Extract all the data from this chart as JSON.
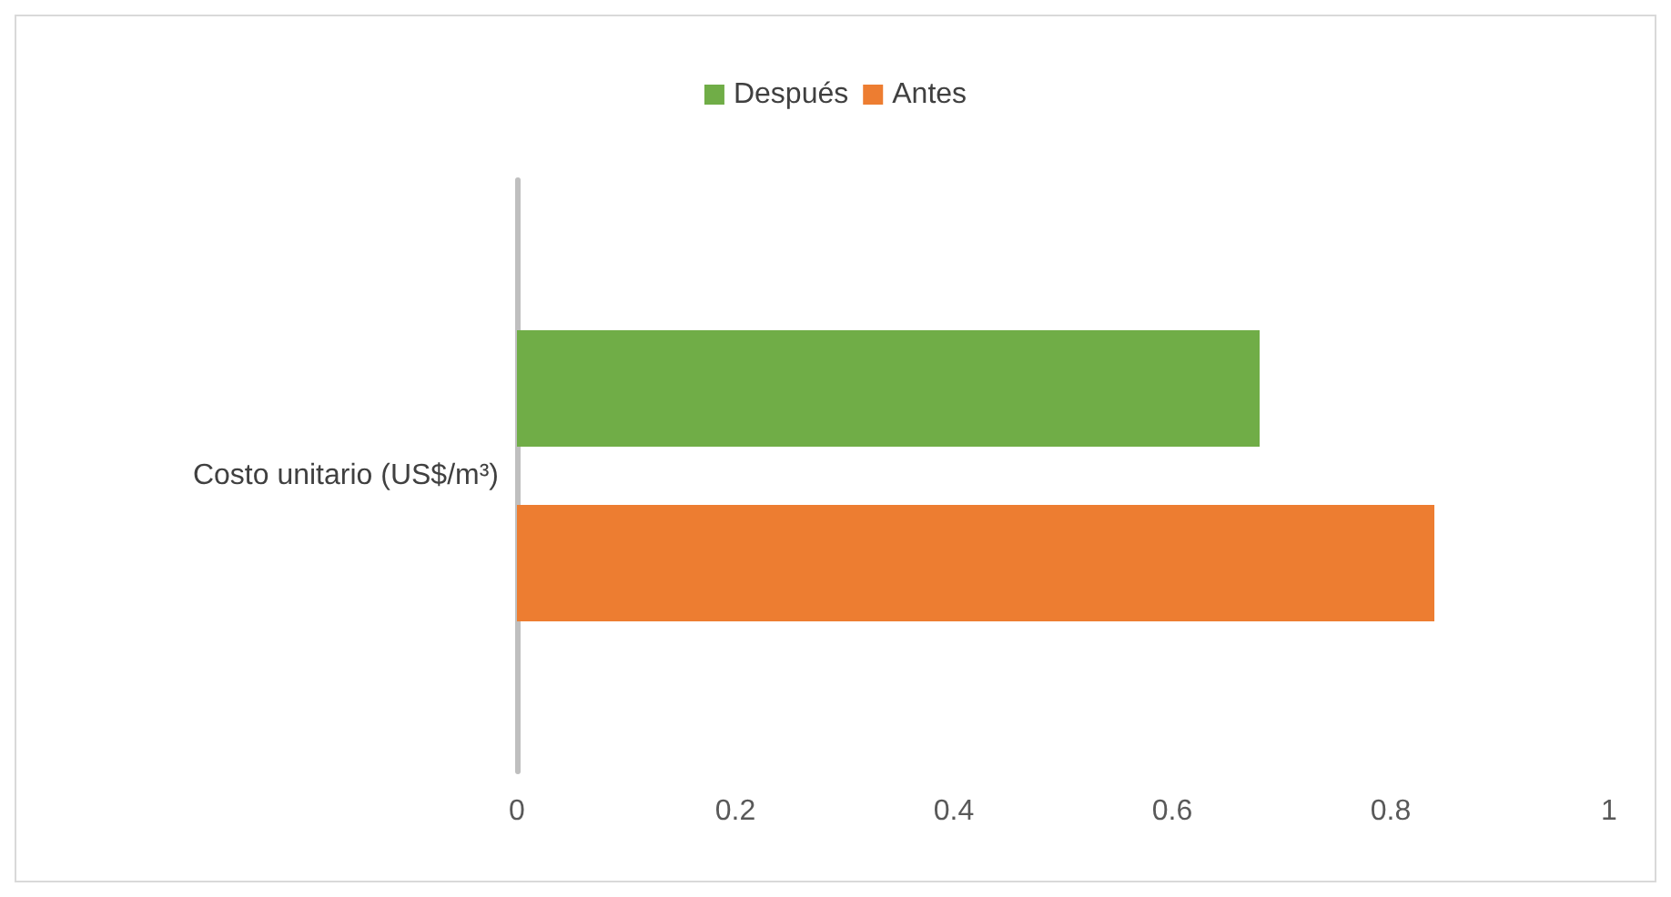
{
  "chart_data": {
    "type": "bar",
    "orientation": "horizontal",
    "categories": [
      "Costo unitario (US$/m³)"
    ],
    "series": [
      {
        "name": "Después",
        "color": "#70ad47",
        "values": [
          0.68
        ]
      },
      {
        "name": "Antes",
        "color": "#ed7d31",
        "values": [
          0.84
        ]
      }
    ],
    "xlim": [
      0,
      1
    ],
    "xticks": [
      0,
      0.2,
      0.4,
      0.6,
      0.8,
      1
    ],
    "grid": false,
    "legend": "top"
  }
}
